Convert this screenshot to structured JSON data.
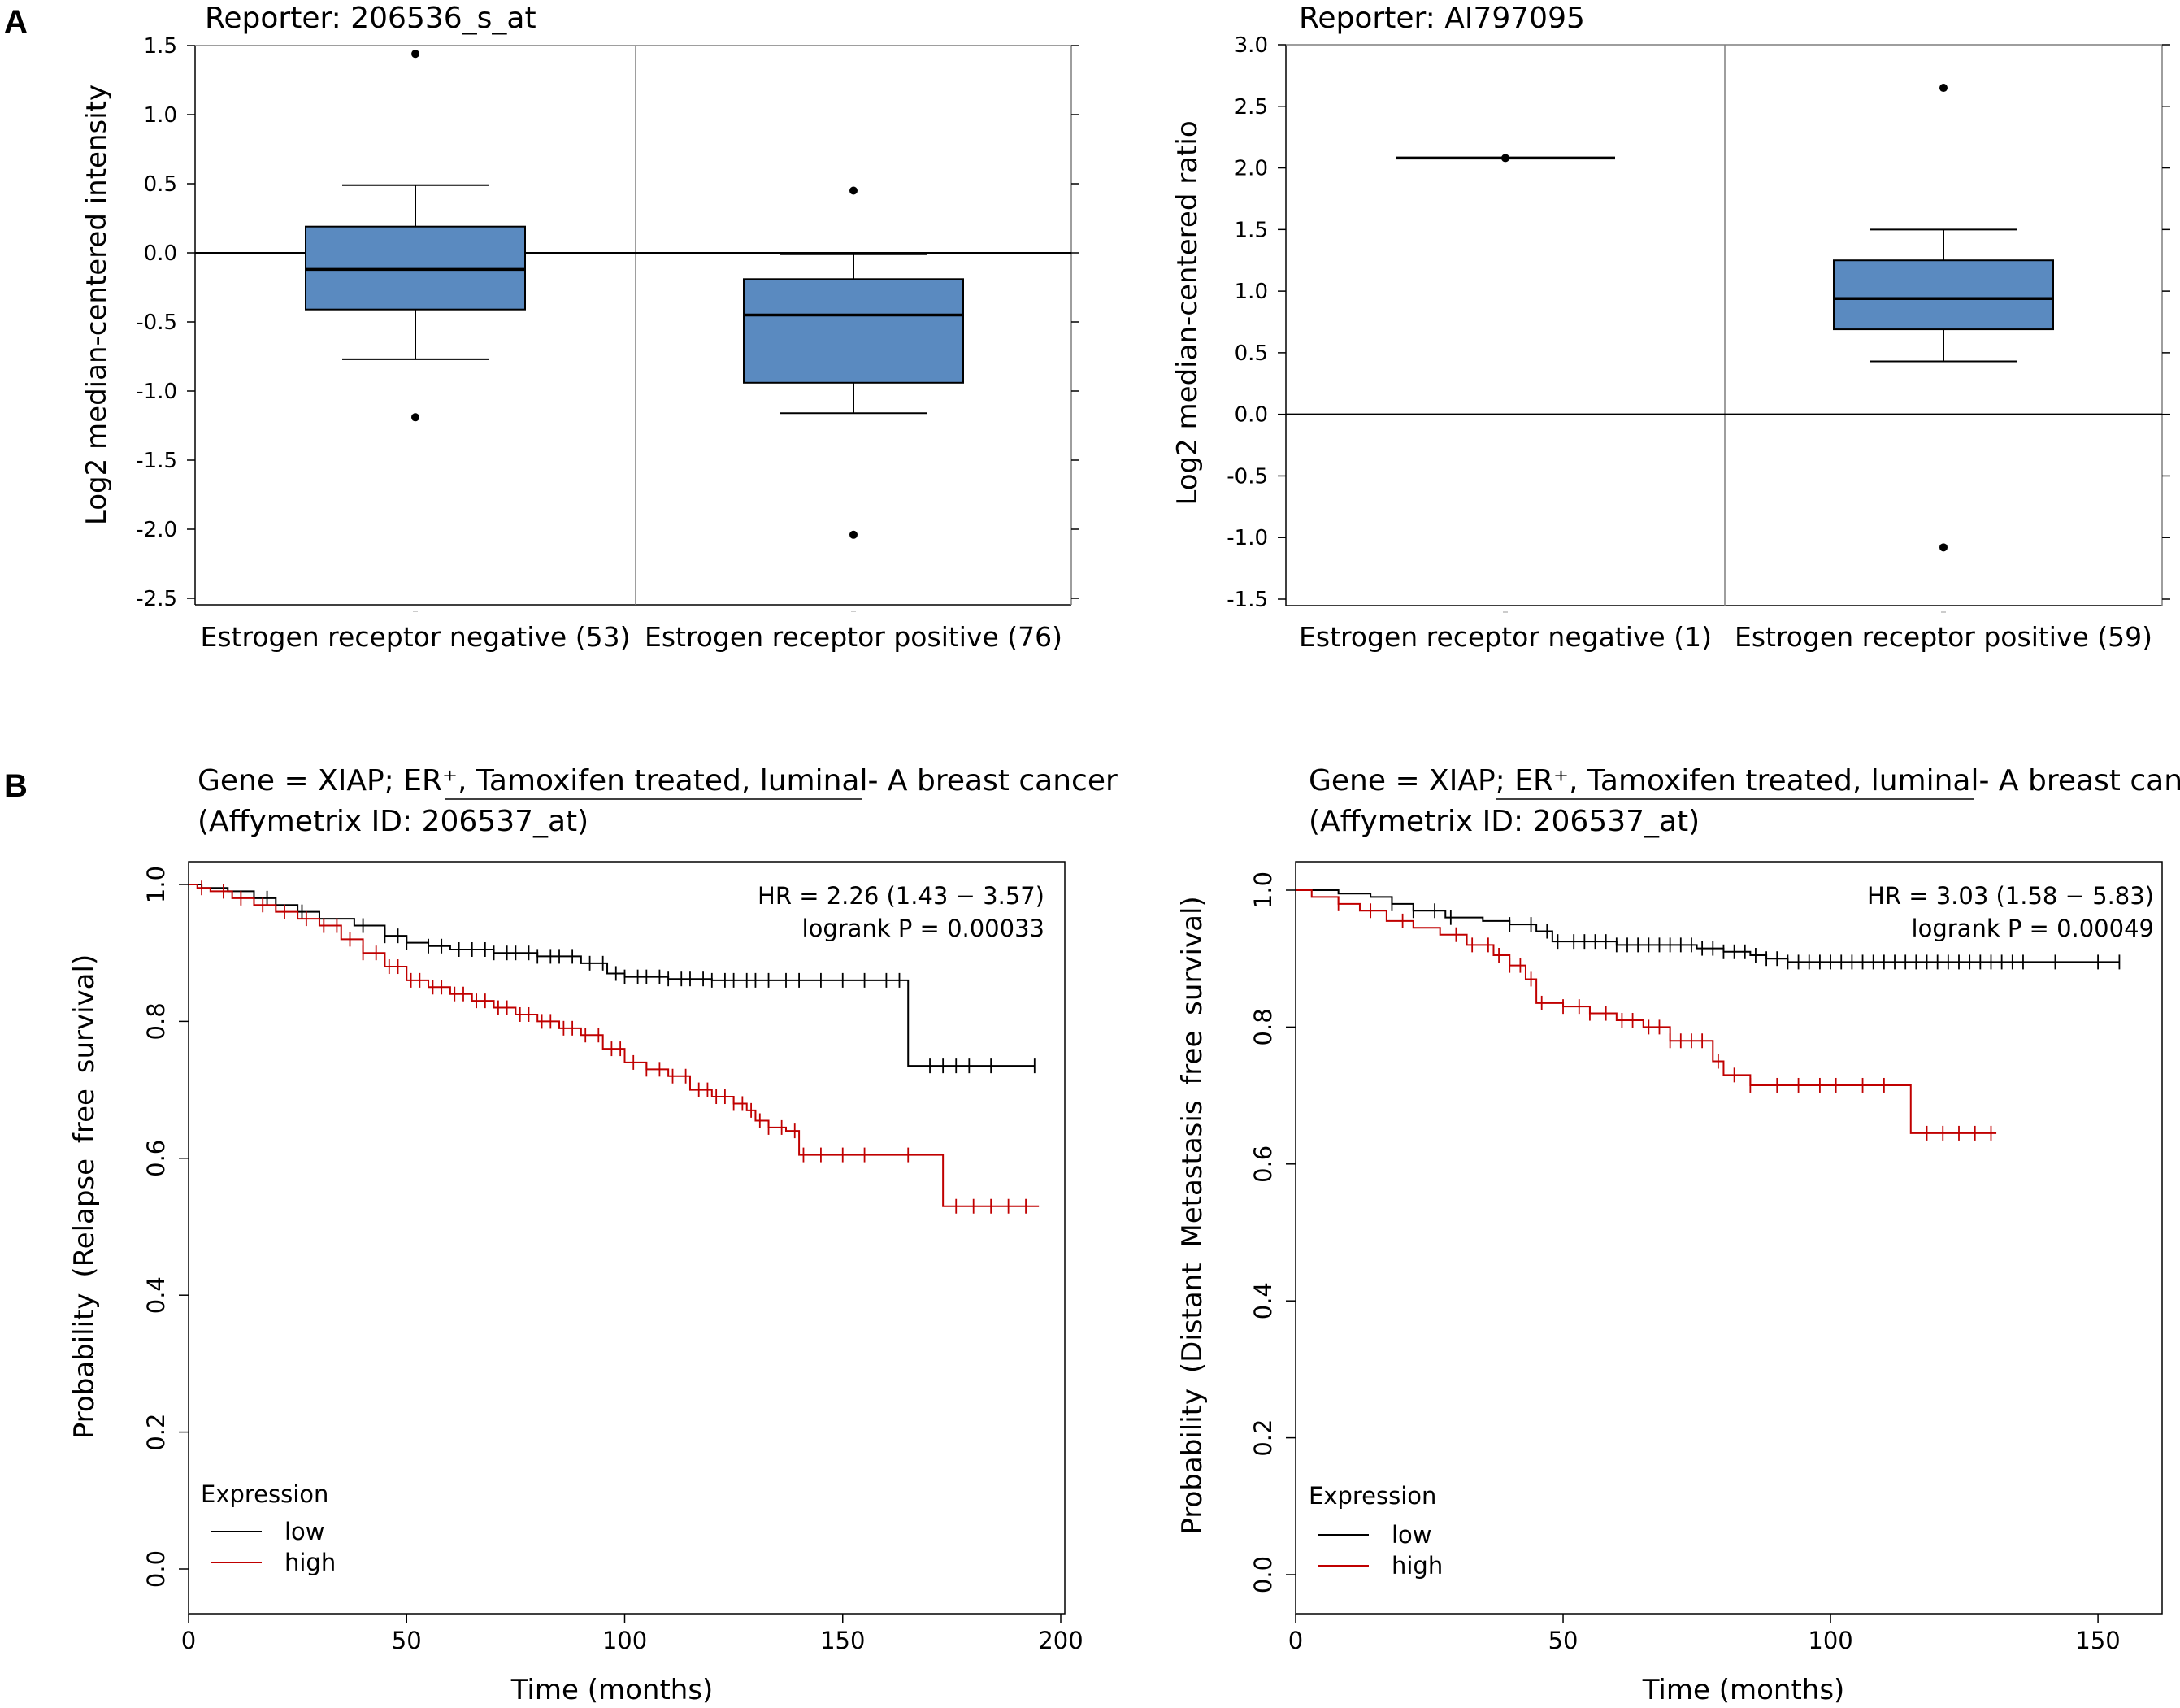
{
  "panel_labels": [
    "A",
    "B"
  ],
  "chart_data": [
    {
      "type": "box",
      "title": "Reporter: 206536_s_at",
      "ylabel": "Log2 median-centered intensity",
      "ylim": [
        -2.5,
        1.5
      ],
      "yticks": [
        "1.5",
        "1.0",
        "0.5",
        "0.0",
        "-0.5",
        "-1.0",
        "-1.5",
        "-2.0",
        "-2.5"
      ],
      "reference_line": 0,
      "color": "#5a8ac0",
      "groups": [
        {
          "label": "Estrogen receptor negative (53)",
          "whisker_low": -0.77,
          "q1": -0.41,
          "median": -0.12,
          "q3": 0.19,
          "whisker_high": 0.49,
          "outliers": [
            1.44,
            -1.19
          ]
        },
        {
          "label": "Estrogen receptor positive (76)",
          "whisker_low": -1.16,
          "q1": -0.94,
          "median": -0.45,
          "q3": -0.19,
          "whisker_high": -0.01,
          "outliers": [
            0.45,
            -2.04
          ]
        }
      ]
    },
    {
      "type": "box",
      "title": "Reporter: AI797095",
      "ylabel": "Log2 median-centered ratio",
      "ylim": [
        -1.5,
        3.0
      ],
      "yticks": [
        "3.0",
        "2.5",
        "2.0",
        "1.5",
        "1.0",
        "0.5",
        "0.0",
        "-0.5",
        "-1.0",
        "-1.5"
      ],
      "reference_line": 0,
      "color": "#5a8ac0",
      "groups": [
        {
          "label": "Estrogen receptor negative (1)",
          "single_value": 2.08,
          "outliers": [
            2.08
          ]
        },
        {
          "label": "Estrogen receptor positive (59)",
          "whisker_low": 0.43,
          "q1": 0.69,
          "median": 0.94,
          "q3": 1.25,
          "whisker_high": 1.5,
          "outliers": [
            2.65,
            -1.08
          ]
        }
      ]
    },
    {
      "type": "line",
      "subtype": "kaplan-meier",
      "title_line1": "Gene = XIAP; ER⁺, Tamoxifen treated, luminal- A breast cancer",
      "title_line2": "(Affymetrix ID: 206537_at)",
      "xlabel": "Time (months)",
      "ylabel": "Probability (Relapse free survival)",
      "xlim": [
        0,
        200
      ],
      "ylim": [
        0,
        1
      ],
      "xticks": [
        "0",
        "50",
        "100",
        "150",
        "200"
      ],
      "yticks": [
        "0.0",
        "0.2",
        "0.4",
        "0.6",
        "0.8",
        "1.0"
      ],
      "hr_text": "HR = 2.26 (1.43 − 3.57)",
      "p_text": "logrank P = 0.00033",
      "legend_title": "Expression",
      "series": [
        {
          "name": "low",
          "color": "#000000",
          "x": [
            0,
            3,
            9,
            15,
            20,
            25,
            30,
            38,
            45,
            50,
            55,
            60,
            70,
            80,
            90,
            96,
            100,
            110,
            120,
            140,
            150,
            160,
            164,
            165,
            194
          ],
          "y": [
            1,
            0.995,
            0.99,
            0.98,
            0.97,
            0.96,
            0.95,
            0.94,
            0.925,
            0.915,
            0.91,
            0.905,
            0.9,
            0.895,
            0.885,
            0.87,
            0.865,
            0.862,
            0.86,
            0.86,
            0.86,
            0.86,
            0.86,
            0.735,
            0.735
          ],
          "censor": [
            18,
            26,
            30,
            40,
            45,
            48,
            50,
            55,
            58,
            62,
            65,
            68,
            70,
            73,
            75,
            78,
            80,
            83,
            85,
            88,
            92,
            95,
            98,
            100,
            103,
            105,
            108,
            110,
            113,
            115,
            118,
            120,
            123,
            125,
            128,
            130,
            133,
            137,
            140,
            145,
            150,
            155,
            160,
            163,
            170,
            173,
            176,
            179,
            184,
            194
          ]
        },
        {
          "name": "high",
          "color": "#c00000",
          "x": [
            0,
            2,
            5,
            10,
            15,
            20,
            25,
            30,
            35,
            40,
            45,
            50,
            55,
            60,
            65,
            70,
            75,
            80,
            85,
            90,
            95,
            100,
            105,
            110,
            115,
            120,
            125,
            128,
            130,
            133,
            137,
            140,
            150,
            160,
            173,
            195
          ],
          "y": [
            1,
            0.995,
            0.99,
            0.98,
            0.97,
            0.96,
            0.95,
            0.94,
            0.92,
            0.9,
            0.88,
            0.86,
            0.85,
            0.84,
            0.83,
            0.82,
            0.81,
            0.8,
            0.79,
            0.78,
            0.76,
            0.74,
            0.73,
            0.72,
            0.7,
            0.69,
            0.68,
            0.67,
            0.655,
            0.645,
            0.64,
            0.605,
            0.605,
            0.605,
            0.53,
            0.53
          ],
          "censor": [
            3,
            8,
            12,
            17,
            22,
            27,
            31,
            34,
            37,
            40,
            43,
            46,
            48,
            51,
            53,
            56,
            58,
            61,
            63,
            66,
            68,
            71,
            73,
            76,
            78,
            81,
            83,
            86,
            88,
            91,
            94,
            97,
            99,
            102,
            105,
            108,
            111,
            114,
            117,
            119,
            121,
            123,
            125,
            127,
            129,
            131,
            133,
            136,
            139,
            141,
            145,
            150,
            155,
            165,
            176,
            180,
            184,
            188,
            192
          ]
        }
      ]
    },
    {
      "type": "line",
      "subtype": "kaplan-meier",
      "title_line1": "Gene = XIAP; ER⁺, Tamoxifen treated, luminal- A breast cancer",
      "title_line2": "(Affymetrix ID: 206537_at)",
      "xlabel": "Time (months)",
      "ylabel": "Probability (Distant Metastasis free survival)",
      "xlim": [
        0,
        155
      ],
      "ylim": [
        0,
        1
      ],
      "xticks": [
        "0",
        "50",
        "100",
        "150"
      ],
      "yticks": [
        "0.0",
        "0.2",
        "0.4",
        "0.6",
        "0.8",
        "1.0"
      ],
      "hr_text": "HR = 3.03 (1.58 − 5.83)",
      "p_text": "logrank P = 0.00049",
      "legend_title": "Expression",
      "series": [
        {
          "name": "low",
          "color": "#000000",
          "x": [
            0,
            8,
            14,
            18,
            22,
            28,
            35,
            40,
            45,
            48,
            60,
            75,
            80,
            85,
            88,
            92,
            100,
            110,
            125,
            154
          ],
          "y": [
            1,
            0.995,
            0.99,
            0.98,
            0.97,
            0.96,
            0.955,
            0.95,
            0.94,
            0.925,
            0.92,
            0.915,
            0.91,
            0.905,
            0.9,
            0.895,
            0.895,
            0.895,
            0.895,
            0.895
          ],
          "censor": [
            18,
            22,
            26,
            29,
            40,
            44,
            47,
            49,
            52,
            54,
            56,
            58,
            60,
            62,
            64,
            66,
            68,
            70,
            72,
            74,
            76,
            78,
            80,
            82,
            84,
            86,
            88,
            90,
            92,
            94,
            96,
            98,
            100,
            102,
            104,
            106,
            108,
            110,
            112,
            114,
            116,
            118,
            120,
            122,
            124,
            126,
            128,
            130,
            132,
            134,
            136,
            142,
            150,
            154
          ]
        },
        {
          "name": "high",
          "color": "#c00000",
          "x": [
            0,
            3,
            8,
            12,
            17,
            22,
            27,
            32,
            37,
            40,
            43,
            45,
            50,
            55,
            60,
            65,
            70,
            78,
            80,
            85,
            90,
            100,
            110,
            114,
            115,
            131
          ],
          "y": [
            1,
            0.99,
            0.98,
            0.97,
            0.955,
            0.945,
            0.935,
            0.92,
            0.905,
            0.89,
            0.87,
            0.835,
            0.83,
            0.82,
            0.81,
            0.8,
            0.78,
            0.75,
            0.73,
            0.715,
            0.715,
            0.715,
            0.715,
            0.715,
            0.645,
            0.645
          ],
          "censor": [
            8,
            14,
            20,
            30,
            33,
            36,
            38,
            40,
            42,
            44,
            46,
            50,
            53,
            55,
            58,
            61,
            63,
            66,
            68,
            70,
            72,
            74,
            76,
            79,
            82,
            85,
            90,
            94,
            98,
            101,
            106,
            110,
            118,
            121,
            124,
            127,
            130
          ]
        }
      ]
    }
  ]
}
